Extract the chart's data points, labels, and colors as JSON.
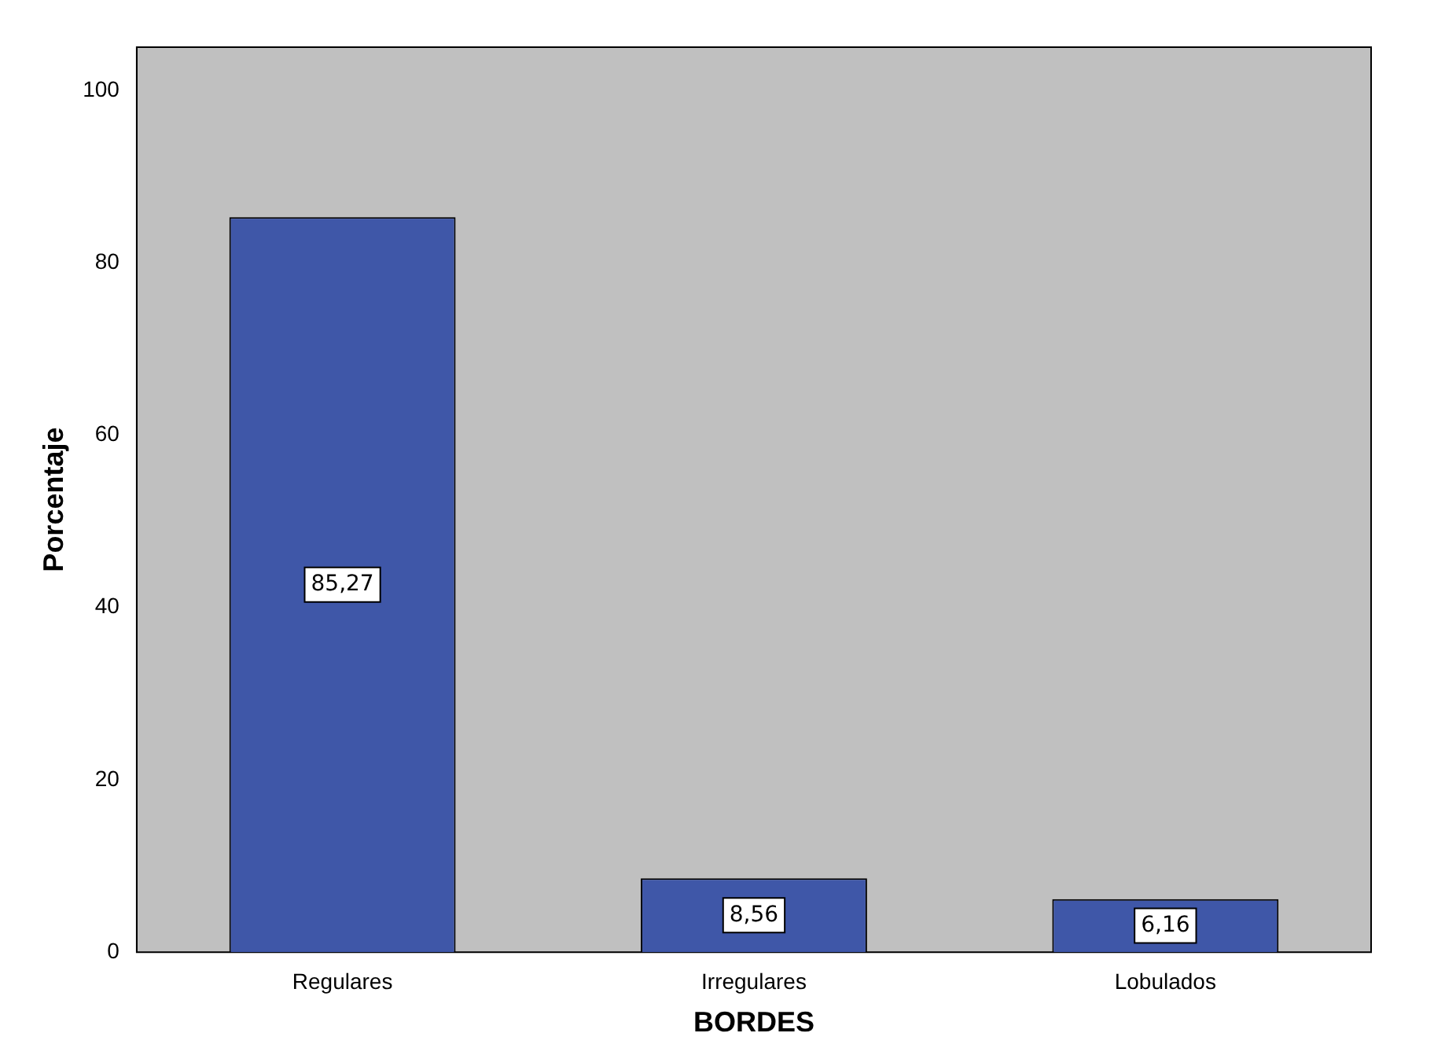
{
  "chart_data": {
    "type": "bar",
    "xlabel": "BORDES",
    "ylabel": "Porcentaje",
    "categories": [
      "Regulares",
      "Irregulares",
      "Lobulados"
    ],
    "values": [
      85.27,
      8.56,
      6.16
    ],
    "value_labels": [
      "85,27",
      "8,56",
      "6,16"
    ],
    "color": "#3f57a8",
    "ylim": [
      0,
      105
    ],
    "yticks": [
      0,
      20,
      40,
      60,
      80,
      100
    ],
    "grid": false,
    "legend": false
  }
}
